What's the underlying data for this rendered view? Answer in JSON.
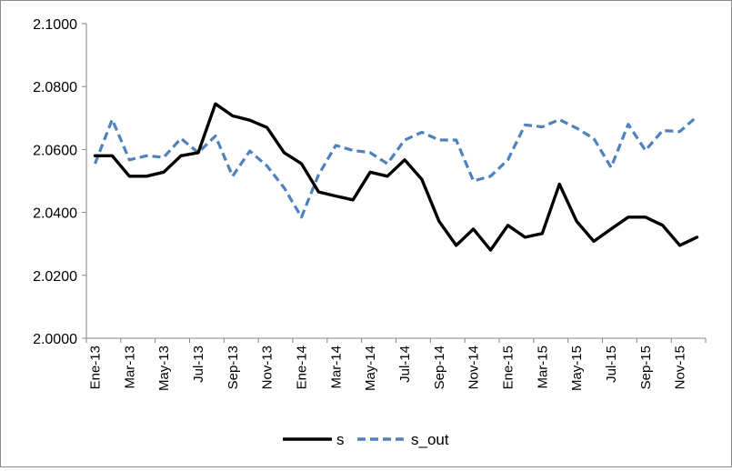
{
  "chart_data": {
    "type": "line",
    "title": "",
    "xlabel": "",
    "ylabel": "",
    "ylim": [
      2.0,
      2.1
    ],
    "ytick_labels": [
      "2.0000",
      "2.0200",
      "2.0400",
      "2.0600",
      "2.0800",
      "2.1000"
    ],
    "y_tick_values": [
      2.0,
      2.02,
      2.04,
      2.06,
      2.08,
      2.1
    ],
    "x": [
      "Ene-13",
      "Feb-13",
      "Mar-13",
      "Apr-13",
      "May-13",
      "Jun-13",
      "Jul-13",
      "Aug-13",
      "Sep-13",
      "Oct-13",
      "Nov-13",
      "Dic-13",
      "Ene-14",
      "Feb-14",
      "Mar-14",
      "Apr-14",
      "May-14",
      "Jun-14",
      "Jul-14",
      "Aug-14",
      "Sep-14",
      "Oct-14",
      "Nov-14",
      "Dic-14",
      "Ene-15",
      "Feb-15",
      "Mar-15",
      "Apr-15",
      "May-15",
      "Jun-15",
      "Jul-15",
      "Aug-15",
      "Sep-15",
      "Oct-15",
      "Nov-15",
      "Dic-15"
    ],
    "xtick_labels": [
      "Ene-13",
      "Mar-13",
      "May-13",
      "Jul-13",
      "Sep-13",
      "Nov-13",
      "Ene-14",
      "Mar-14",
      "May-14",
      "Jul-14",
      "Sep-14",
      "Nov-14",
      "Ene-15",
      "Mar-15",
      "May-15",
      "Jul-15",
      "Sep-15",
      "Nov-15"
    ],
    "grid": false,
    "legend_position": "bottom",
    "series": [
      {
        "name": "s",
        "color": "#000000",
        "style": "solid",
        "values": [
          2.058,
          2.058,
          2.0515,
          2.0515,
          2.0528,
          2.058,
          2.059,
          2.0745,
          2.0707,
          2.0693,
          2.067,
          2.059,
          2.0555,
          2.0465,
          2.0452,
          2.044,
          2.0528,
          2.0515,
          2.0567,
          2.0505,
          2.0372,
          2.0295,
          2.0347,
          2.028,
          2.0359,
          2.0321,
          2.0333,
          2.049,
          2.0372,
          2.0308,
          2.0347,
          2.0385,
          2.0385,
          2.0359,
          2.0295,
          2.0321
        ]
      },
      {
        "name": "s_out",
        "color": "#4f81bd",
        "style": "dashed",
        "values": [
          2.0555,
          2.0695,
          2.0567,
          2.058,
          2.0575,
          2.0635,
          2.059,
          2.0643,
          2.0515,
          2.0595,
          2.0548,
          2.0478,
          2.0385,
          2.052,
          2.0613,
          2.0597,
          2.059,
          2.0555,
          2.063,
          2.0655,
          2.063,
          2.063,
          2.05,
          2.0515,
          2.0567,
          2.0678,
          2.0672,
          2.0695,
          2.0668,
          2.0635,
          2.0543,
          2.068,
          2.0597,
          2.066,
          2.0657,
          2.0705
        ]
      }
    ]
  }
}
